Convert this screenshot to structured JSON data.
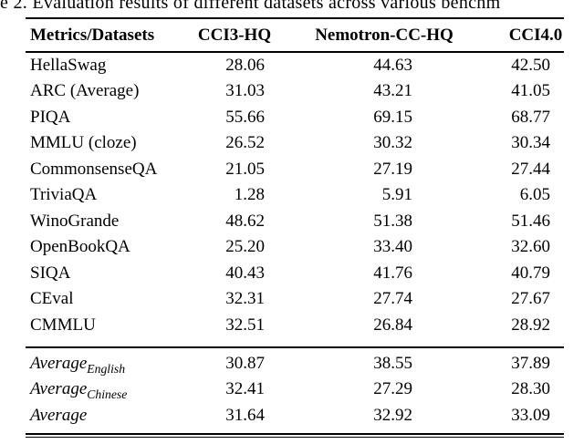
{
  "caption": "e 2. Evaluation results of different datasets across various benchm",
  "table": {
    "columns": [
      "Metrics/Datasets",
      "CCI3-HQ",
      "Nemotron-CC-HQ",
      "CCI4.0"
    ],
    "rows": [
      {
        "metric": "HellaSwag",
        "values": [
          "28.06",
          "44.63",
          "42.50"
        ]
      },
      {
        "metric": "ARC (Average)",
        "values": [
          "31.03",
          "43.21",
          "41.05"
        ]
      },
      {
        "metric": "PIQA",
        "values": [
          "55.66",
          "69.15",
          "68.77"
        ]
      },
      {
        "metric": "MMLU (cloze)",
        "values": [
          "26.52",
          "30.32",
          "30.34"
        ]
      },
      {
        "metric": "CommonsenseQA",
        "values": [
          "21.05",
          "27.19",
          "27.44"
        ]
      },
      {
        "metric": "TriviaQA",
        "values": [
          "1.28",
          "5.91",
          "6.05"
        ]
      },
      {
        "metric": "WinoGrande",
        "values": [
          "48.62",
          "51.38",
          "51.46"
        ]
      },
      {
        "metric": "OpenBookQA",
        "values": [
          "25.20",
          "33.40",
          "32.60"
        ]
      },
      {
        "metric": "SIQA",
        "values": [
          "40.43",
          "41.76",
          "40.79"
        ]
      },
      {
        "metric": "CEval",
        "values": [
          "32.31",
          "27.74",
          "27.67"
        ]
      },
      {
        "metric": "CMMLU",
        "values": [
          "32.51",
          "26.84",
          "28.92"
        ]
      }
    ],
    "summary_rows": [
      {
        "metric": "Average",
        "subscript": "English",
        "values": [
          "30.87",
          "38.55",
          "37.89"
        ]
      },
      {
        "metric": "Average",
        "subscript": "Chinese",
        "values": [
          "32.41",
          "27.29",
          "28.30"
        ]
      },
      {
        "metric": "Average",
        "subscript": "",
        "values": [
          "31.64",
          "32.92",
          "33.09"
        ]
      }
    ]
  }
}
